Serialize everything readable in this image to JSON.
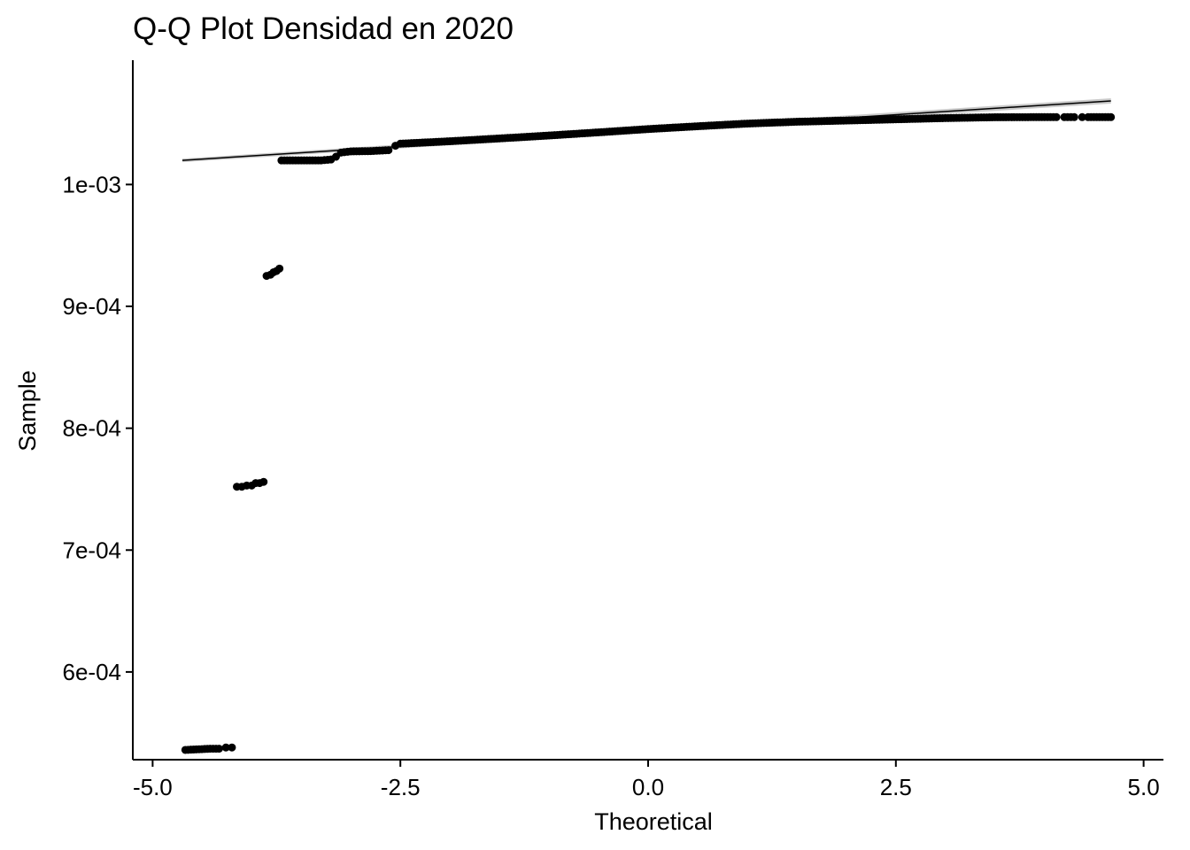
{
  "chart_data": {
    "type": "scatter",
    "subtype": "qq-plot",
    "title": "Q-Q Plot Densidad en 2020",
    "xlabel": "Theoretical",
    "ylabel": "Sample",
    "xlim": [
      -5.2,
      5.2
    ],
    "ylim": [
      0.000528,
      0.001102
    ],
    "x_ticks": [
      -5.0,
      -2.5,
      0.0,
      2.5,
      5.0
    ],
    "x_tick_labels": [
      "-5.0",
      "-2.5",
      "0.0",
      "2.5",
      "5.0"
    ],
    "y_ticks": [
      0.0006,
      0.0007,
      0.0008,
      0.0009,
      0.001
    ],
    "y_tick_labels": [
      "6e-04",
      "7e-04",
      "8e-04",
      "9e-04",
      "1e-03"
    ],
    "grid": false,
    "legend": "none",
    "point_color": "#000000",
    "reference_line": {
      "x": [
        -4.7,
        4.67
      ],
      "y": [
        0.0010198,
        0.0010686
      ],
      "color": "#000000",
      "band_color": "#bdbdbd"
    },
    "points": [
      {
        "x": -4.67,
        "y": 0.000536
      },
      {
        "x": -4.42,
        "y": 0.000537
      },
      {
        "x": -4.33,
        "y": 0.000537
      },
      {
        "x": -4.26,
        "y": 0.000538
      },
      {
        "x": -4.2,
        "y": 0.000538
      },
      {
        "x": -4.15,
        "y": 0.000752
      },
      {
        "x": -4.1,
        "y": 0.000752
      },
      {
        "x": -4.05,
        "y": 0.000753
      },
      {
        "x": -4.0,
        "y": 0.000753
      },
      {
        "x": -3.96,
        "y": 0.000755
      },
      {
        "x": -3.92,
        "y": 0.000755
      },
      {
        "x": -3.88,
        "y": 0.000756
      },
      {
        "x": -3.85,
        "y": 0.000925
      },
      {
        "x": -3.81,
        "y": 0.000926
      },
      {
        "x": -3.78,
        "y": 0.000928
      },
      {
        "x": -3.75,
        "y": 0.000929
      },
      {
        "x": -3.72,
        "y": 0.000931
      },
      {
        "x": -3.7,
        "y": 0.0010198
      },
      {
        "x": -3.5,
        "y": 0.0010198
      },
      {
        "x": -3.3,
        "y": 0.0010198
      },
      {
        "x": -3.2,
        "y": 0.0010205
      },
      {
        "x": -3.15,
        "y": 0.0010228
      },
      {
        "x": -3.1,
        "y": 0.0010262
      },
      {
        "x": -3.0,
        "y": 0.0010272
      },
      {
        "x": -2.8,
        "y": 0.0010274
      },
      {
        "x": -2.62,
        "y": 0.0010282
      },
      {
        "x": -2.55,
        "y": 0.0010318
      },
      {
        "x": -2.5,
        "y": 0.0010335
      },
      {
        "x": -2.0,
        "y": 0.0010355
      },
      {
        "x": -1.5,
        "y": 0.0010378
      },
      {
        "x": -1.0,
        "y": 0.0010402
      },
      {
        "x": -0.5,
        "y": 0.0010428
      },
      {
        "x": 0.0,
        "y": 0.0010455
      },
      {
        "x": 0.5,
        "y": 0.0010478
      },
      {
        "x": 1.0,
        "y": 0.00105
      },
      {
        "x": 1.5,
        "y": 0.0010515
      },
      {
        "x": 2.0,
        "y": 0.0010525
      },
      {
        "x": 2.5,
        "y": 0.0010535
      },
      {
        "x": 3.0,
        "y": 0.0010545
      },
      {
        "x": 3.5,
        "y": 0.0010552
      },
      {
        "x": 4.0,
        "y": 0.0010553
      },
      {
        "x": 4.12,
        "y": 0.0010553
      },
      {
        "x": 4.2,
        "y": 0.0010553
      },
      {
        "x": 4.3,
        "y": 0.0010553
      },
      {
        "x": 4.38,
        "y": 0.0010553
      },
      {
        "x": 4.44,
        "y": 0.0010553
      },
      {
        "x": 4.67,
        "y": 0.0010553
      }
    ]
  }
}
